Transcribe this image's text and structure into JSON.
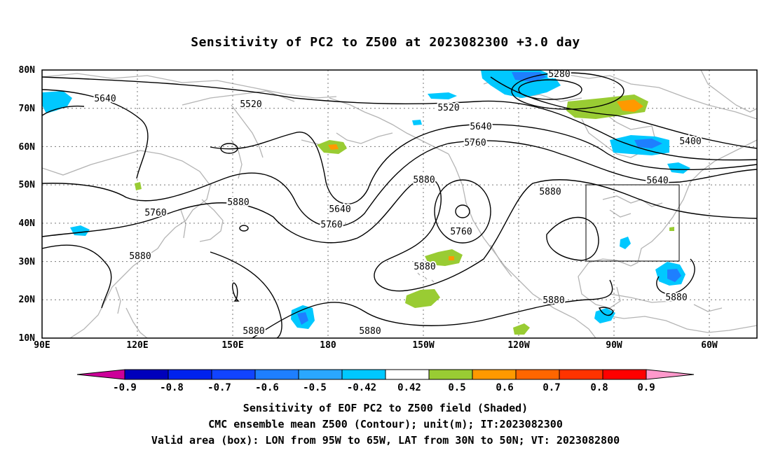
{
  "title": "Sensitivity of PC2 to Z500 at 2023082300 +3.0 day",
  "map": {
    "lat_labels": [
      "80N",
      "70N",
      "60N",
      "50N",
      "40N",
      "30N",
      "20N",
      "10N"
    ],
    "lon_labels": [
      "90E",
      "120E",
      "150E",
      "180",
      "150W",
      "120W",
      "90W",
      "60W"
    ],
    "contour_labels": [
      "5640",
      "5520",
      "5520",
      "5280",
      "5400",
      "5640",
      "5760",
      "5880",
      "5640",
      "5760",
      "5880",
      "5880",
      "5760",
      "5880",
      "5760",
      "5880",
      "5880",
      "5880",
      "5640",
      "5880",
      "5880",
      "5880"
    ],
    "valid_box": {
      "lon_from": "95W",
      "lon_to": "65W",
      "lat_from": "30N",
      "lat_to": "50N"
    }
  },
  "colorbar": {
    "labels": [
      "-0.9",
      "-0.8",
      "-0.7",
      "-0.6",
      "-0.5",
      "-0.42",
      "0.42",
      "0.5",
      "0.6",
      "0.7",
      "0.8",
      "0.9"
    ],
    "colors": [
      "#cc0099",
      "#0000bb",
      "#0022ee",
      "#1144ff",
      "#1e7fff",
      "#2aa7ff",
      "#00c8ff",
      "#ffffff",
      "#99cc33",
      "#ff9900",
      "#ff6600",
      "#ff3300",
      "#ff0000",
      "#ff99cc"
    ]
  },
  "captions": [
    "Sensitivity of EOF PC2 to Z500 field (Shaded)",
    "CMC ensemble mean Z500 (Contour); unit(m); IT:2023082300",
    "Valid area (box): LON from 95W to 65W, LAT from 30N to 50N; VT: 2023082800"
  ]
}
